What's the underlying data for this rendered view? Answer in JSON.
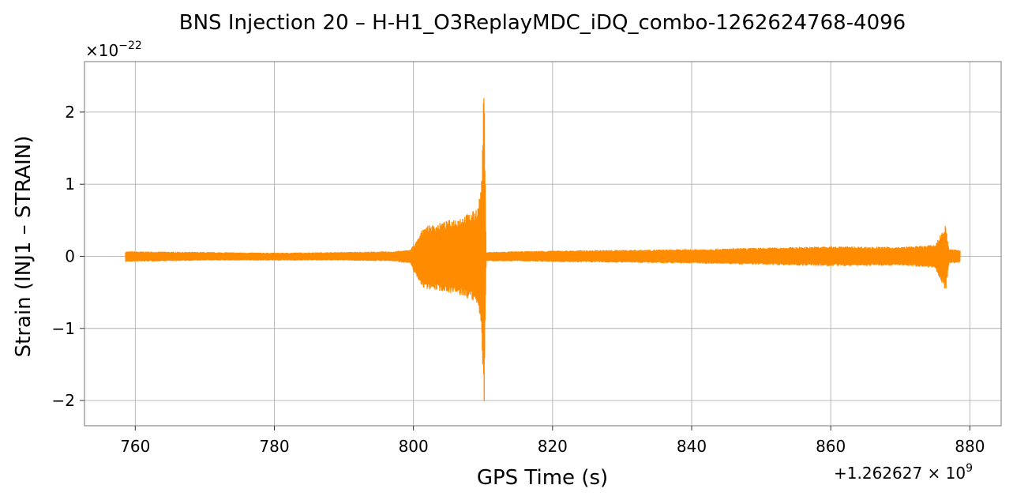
{
  "chart_data": {
    "type": "line",
    "title": "BNS Injection 20 – H-H1_O3ReplayMDC_iDQ_combo-1262624768-4096",
    "xlabel": "GPS Time (s)",
    "ylabel": "Strain (INJ1 – STRAIN)",
    "y_scale_label": "×10",
    "y_scale_exp": "−22",
    "x_offset_label": "+1.262627 × 10",
    "x_offset_exp": "9",
    "xlim": [
      752.7,
      884.5
    ],
    "ylim": [
      -2.35,
      2.7
    ],
    "grid": true,
    "legend": "none",
    "line_color": "#ff8c00",
    "x_ticks": [
      760,
      780,
      800,
      820,
      840,
      860,
      880
    ],
    "x_tick_labels": [
      "760",
      "780",
      "800",
      "820",
      "840",
      "860",
      "880"
    ],
    "y_ticks": [
      -2,
      -1,
      0,
      1,
      2
    ],
    "y_tick_labels": [
      "−2",
      "−1",
      "0",
      "1",
      "2"
    ],
    "series": [
      {
        "x_range": [
          758.6,
          878.6
        ],
        "envelope_points": [
          [
            758.6,
            0.07
          ],
          [
            770,
            0.06
          ],
          [
            780,
            0.05
          ],
          [
            790,
            0.06
          ],
          [
            797,
            0.07
          ],
          [
            799.5,
            0.09
          ],
          [
            800.5,
            0.22
          ],
          [
            801.5,
            0.42
          ],
          [
            803,
            0.44
          ],
          [
            805,
            0.5
          ],
          [
            807,
            0.56
          ],
          [
            808.5,
            0.62
          ],
          [
            809.3,
            0.7
          ],
          [
            809.8,
            1.05
          ],
          [
            810.15,
            2.48
          ],
          [
            810.45,
            0.06
          ],
          [
            815,
            0.07
          ],
          [
            820,
            0.08
          ],
          [
            830,
            0.09
          ],
          [
            840,
            0.1
          ],
          [
            850,
            0.12
          ],
          [
            860,
            0.14
          ],
          [
            870,
            0.13
          ],
          [
            875,
            0.16
          ],
          [
            876.5,
            0.43
          ],
          [
            877,
            0.1
          ],
          [
            878.6,
            0.09
          ]
        ],
        "min_envelope_points": [
          [
            758.6,
            -0.08
          ],
          [
            770,
            -0.06
          ],
          [
            780,
            -0.06
          ],
          [
            790,
            -0.06
          ],
          [
            797,
            -0.07
          ],
          [
            799.5,
            -0.1
          ],
          [
            800.5,
            -0.3
          ],
          [
            801.5,
            -0.45
          ],
          [
            803,
            -0.47
          ],
          [
            805,
            -0.5
          ],
          [
            807,
            -0.56
          ],
          [
            808.5,
            -0.62
          ],
          [
            809.3,
            -0.7
          ],
          [
            809.8,
            -1.0
          ],
          [
            810.15,
            -2.13
          ],
          [
            810.45,
            -0.07
          ],
          [
            815,
            -0.07
          ],
          [
            820,
            -0.08
          ],
          [
            830,
            -0.09
          ],
          [
            840,
            -0.1
          ],
          [
            850,
            -0.12
          ],
          [
            860,
            -0.14
          ],
          [
            870,
            -0.13
          ],
          [
            875,
            -0.16
          ],
          [
            876.5,
            -0.5
          ],
          [
            877,
            -0.1
          ],
          [
            878.6,
            -0.09
          ]
        ]
      }
    ]
  }
}
